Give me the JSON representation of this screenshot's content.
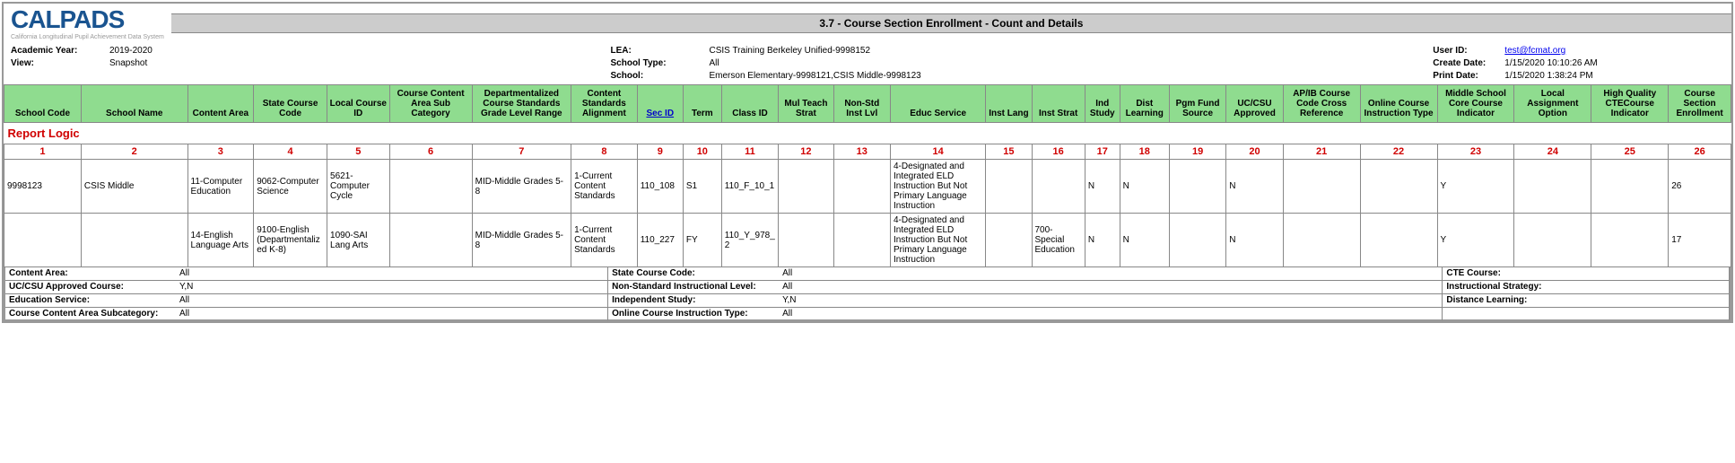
{
  "logo": {
    "text": "CALPADS",
    "subtitle": "California Longitudinal Pupil Achievement Data System"
  },
  "title": "3.7 - Course Section Enrollment - Count and Details",
  "header": {
    "academic_year_lbl": "Academic Year:",
    "academic_year": "2019-2020",
    "view_lbl": "View:",
    "view": "Snapshot",
    "lea_lbl": "LEA:",
    "lea": "CSIS Training Berkeley Unified-9998152",
    "school_type_lbl": "School Type:",
    "school_type": "All",
    "school_lbl": "School:",
    "school": "Emerson Elementary-9998121,CSIS Middle-9998123",
    "user_id_lbl": "User ID:",
    "user_id": "test@fcmat.org",
    "create_date_lbl": "Create Date:",
    "create_date": "1/15/2020 10:10:26 AM",
    "print_date_lbl": "Print Date:",
    "print_date": "1/15/2020 1:38:24 PM"
  },
  "columns": [
    "School Code",
    "School Name",
    "Content Area",
    "State Course Code",
    "Local Course ID",
    "Course Content Area Sub Category",
    "Departmentalized Course Standards Grade Level Range",
    "Content Standards Alignment",
    "Sec ID",
    "Term",
    "Class ID",
    "Mul Teach Strat",
    "Non-Std Inst Lvl",
    "Educ Service",
    "Inst Lang",
    "Inst Strat",
    "Ind Study",
    "Dist Learning",
    "Pgm Fund Source",
    "UC/CSU Approved",
    "AP/IB Course Code Cross Reference",
    "Online Course Instruction Type",
    "Middle School Core Course Indicator",
    "Local Assignment Option",
    "High Quality CTECourse Indicator",
    "Course Section Enrollment"
  ],
  "col_widths": [
    "4.2%",
    "5.8%",
    "3.6%",
    "4%",
    "3.4%",
    "4.5%",
    "5.4%",
    "3.6%",
    "2.5%",
    "2.1%",
    "3.1%",
    "3%",
    "3.1%",
    "5.2%",
    "2.5%",
    "2.9%",
    "1.9%",
    "2.7%",
    "3.1%",
    "3.1%",
    "4.2%",
    "4.2%",
    "4.2%",
    "4.2%",
    "4.2%",
    "3.4%"
  ],
  "sec_link_col": 8,
  "report_logic_title": "Report Logic",
  "col_nums": [
    "1",
    "2",
    "3",
    "4",
    "5",
    "6",
    "7",
    "8",
    "9",
    "10",
    "11",
    "12",
    "13",
    "14",
    "15",
    "16",
    "17",
    "18",
    "19",
    "20",
    "21",
    "22",
    "23",
    "24",
    "25",
    "26"
  ],
  "rows": [
    {
      "c": [
        "9998123",
        "CSIS Middle",
        "11-Computer Education",
        "9062-Computer Science",
        "5621-Computer Cycle",
        "",
        "MID-Middle Grades 5-8",
        "1-Current Content Standards",
        "110_108",
        "S1",
        "110_F_10_1",
        "",
        "",
        "4-Designated and Integrated ELD Instruction But Not Primary Language Instruction",
        "",
        "",
        "N",
        "N",
        "",
        "N",
        "",
        "",
        "Y",
        "",
        "",
        "26"
      ]
    },
    {
      "c": [
        "",
        "",
        "14-English Language Arts",
        "9100-English (Departmentalized K-8)",
        "1090-SAI Lang Arts",
        "",
        "MID-Middle Grades 5-8",
        "1-Current Content Standards",
        "110_227",
        "FY",
        "110_Y_978_2",
        "",
        "",
        "4-Designated and Integrated ELD Instruction But Not Primary Language Instruction",
        "",
        "700-Special Education",
        "N",
        "N",
        "",
        "N",
        "",
        "",
        "Y",
        "",
        "",
        "17"
      ]
    }
  ],
  "footer": {
    "f1": [
      [
        "Content Area:",
        "All"
      ],
      [
        "UC/CSU Approved Course:",
        "Y,N"
      ],
      [
        "Education Service:",
        "All"
      ],
      [
        "Course Content Area Subcategory:",
        "All"
      ]
    ],
    "f2": [
      [
        "State Course Code:",
        "All"
      ],
      [
        "Non-Standard Instructional Level:",
        "All"
      ],
      [
        "Independent Study:",
        "Y,N"
      ],
      [
        "Online Course Instruction Type:",
        "All"
      ]
    ],
    "f3": [
      [
        "CTE Course:",
        ""
      ],
      [
        "Instructional Strategy:",
        ""
      ],
      [
        "Distance Learning:",
        ""
      ],
      [
        "",
        ""
      ]
    ]
  },
  "colors": {
    "header_green": "#8fdc8f",
    "red": "#d00000",
    "link": "#0000ee",
    "border": "#888888",
    "title_bg": "#cccccc"
  }
}
